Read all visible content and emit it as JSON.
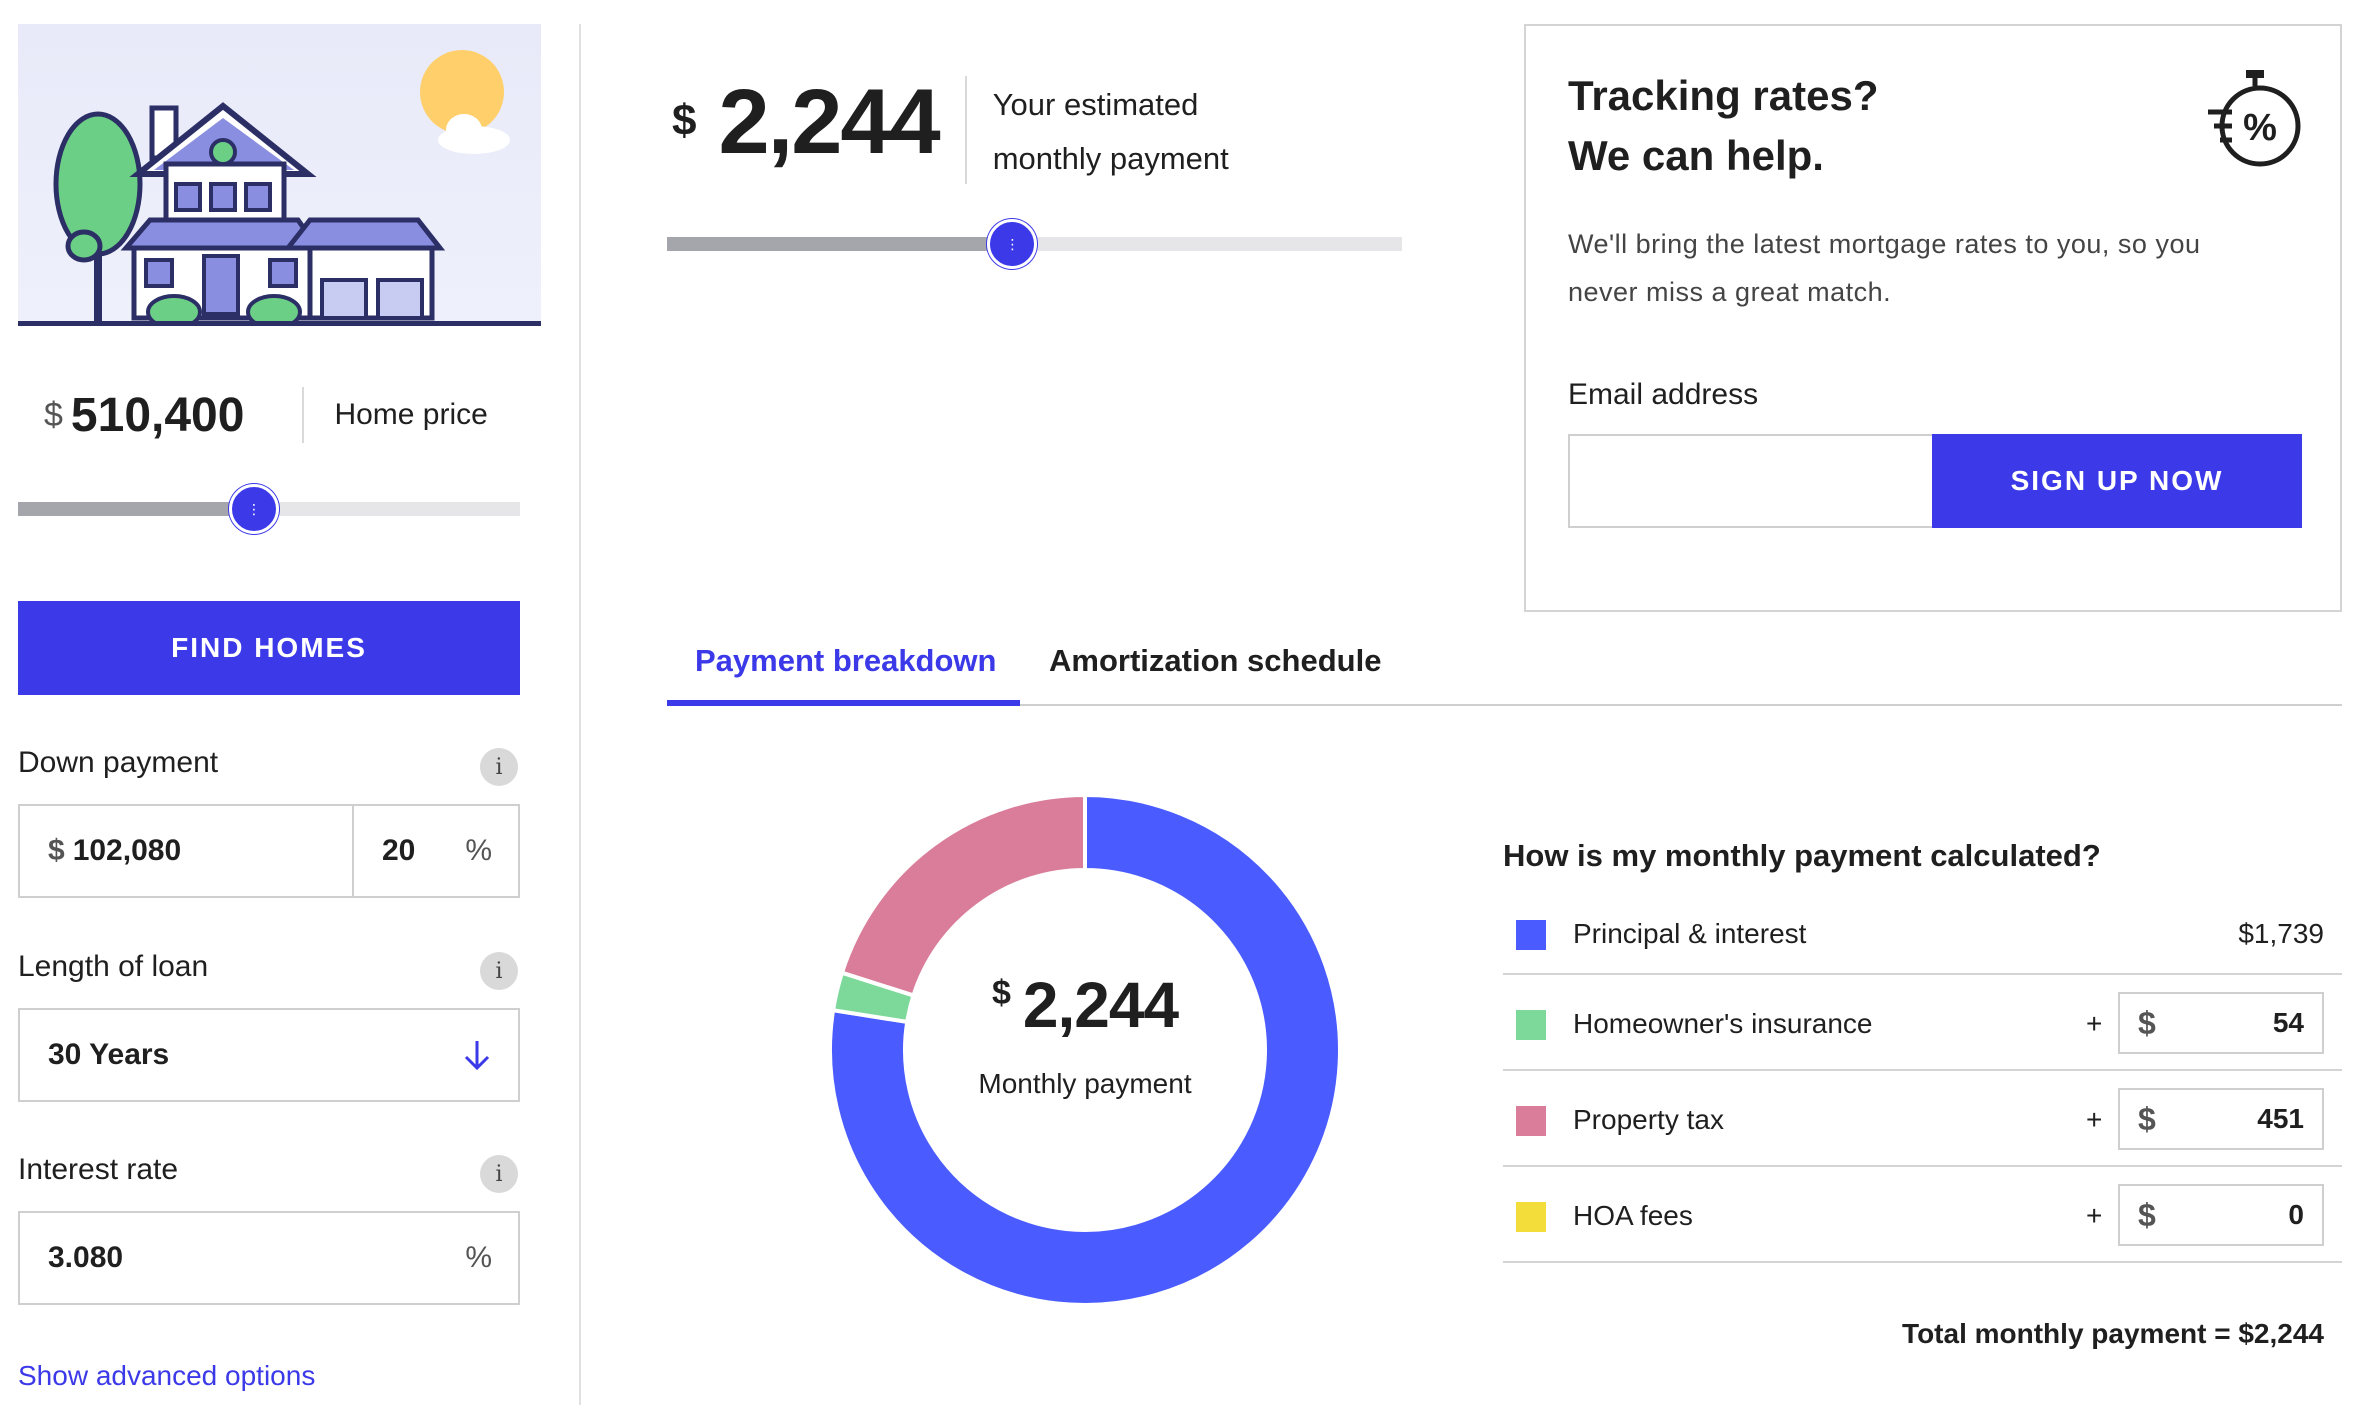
{
  "home": {
    "currency_symbol": "$",
    "price": "510,400",
    "price_label": "Home price",
    "slider_fraction": 0.47
  },
  "find_homes_label": "FIND HOMES",
  "down_payment": {
    "label": "Down payment",
    "currency_symbol": "$",
    "amount": "102,080",
    "percent": "20",
    "percent_symbol": "%"
  },
  "loan_length": {
    "label": "Length of loan",
    "value": "30 Years"
  },
  "interest_rate": {
    "label": "Interest rate",
    "value": "3.080",
    "percent_symbol": "%"
  },
  "info_glyph": "i",
  "advanced_link": "Show advanced options",
  "estimate": {
    "currency_symbol": "$",
    "amount": "2,244",
    "label_line1": "Your estimated",
    "label_line2": "monthly payment",
    "slider_fraction": 0.47
  },
  "promo": {
    "title_line1": "Tracking rates?",
    "title_line2": "We can help.",
    "text_line1": "We'll bring the latest mortgage rates to you, so you",
    "text_line2": "never miss a great match.",
    "email_label": "Email address",
    "email_placeholder": "",
    "signup_label": "SIGN UP NOW"
  },
  "tabs": [
    {
      "label": "Payment breakdown",
      "active": true
    },
    {
      "label": "Amortization schedule",
      "active": false
    }
  ],
  "donut": {
    "currency_symbol": "$",
    "amount": "2,244",
    "label": "Monthly payment"
  },
  "breakdown": {
    "title": "How is my monthly payment calculated?",
    "rows": [
      {
        "label": "Principal & interest",
        "value": "$1,739",
        "amount": 1739,
        "color": "#4a5cff",
        "editable": false
      },
      {
        "label": "Homeowner's insurance",
        "value": "54",
        "amount": 54,
        "color": "#7dd99a",
        "editable": true
      },
      {
        "label": "Property tax",
        "value": "451",
        "amount": 451,
        "color": "#d97d9a",
        "editable": true
      },
      {
        "label": "HOA fees",
        "value": "0",
        "amount": 0,
        "color": "#f2dd3a",
        "editable": true
      }
    ],
    "plus_symbol": "+",
    "currency_symbol": "$",
    "total_label": "Total monthly payment = $2,244"
  },
  "colors": {
    "accent": "#3b39e8",
    "principal": "#4a5cff",
    "insurance": "#7dd99a",
    "tax": "#d97d9a",
    "hoa": "#f2dd3a"
  }
}
